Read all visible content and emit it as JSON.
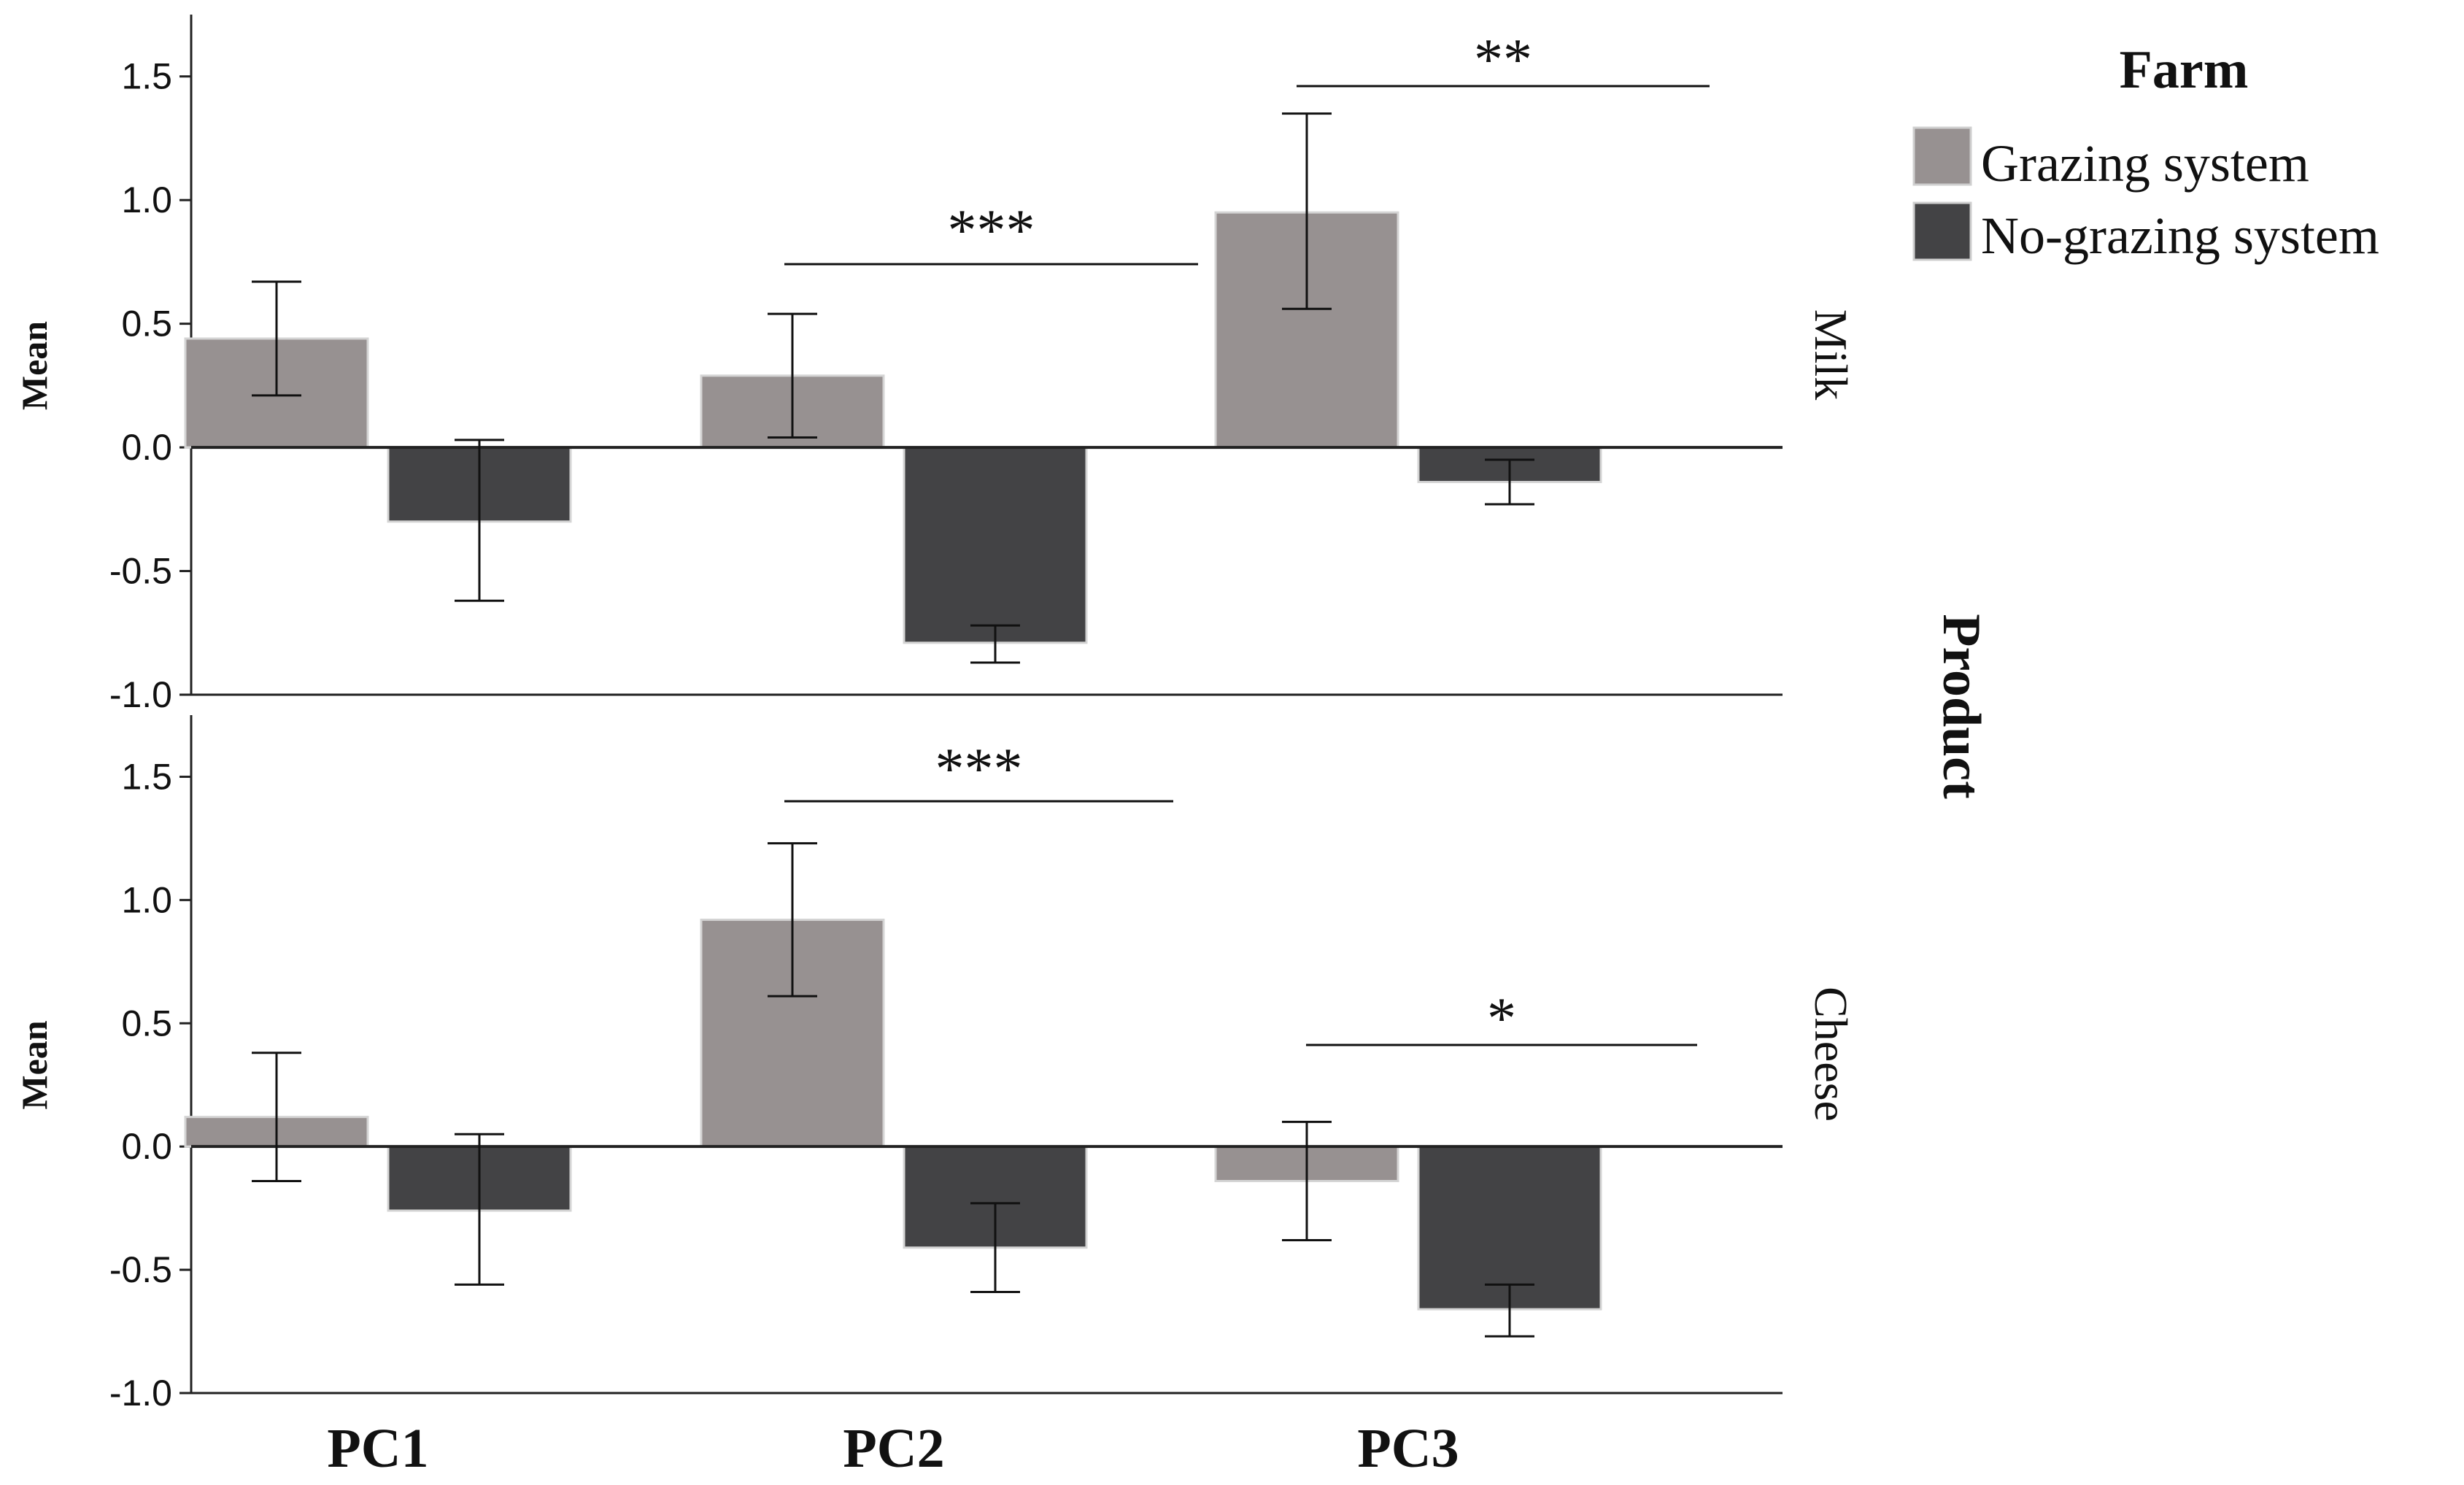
{
  "chart_data": {
    "type": "bar",
    "categories": [
      "PC1",
      "PC2",
      "PC3"
    ],
    "ylabel": "Mean",
    "ylim": [
      -1.0,
      1.75
    ],
    "yticks": [
      "1.5",
      "1.0",
      "0.5",
      "0.0",
      "-0.5",
      "-1.0"
    ],
    "facet_title": "Product",
    "legend": {
      "title": "Farm",
      "placement": "top-right",
      "entries": [
        {
          "name": "Grazing system",
          "color": "#979191"
        },
        {
          "name": "No-grazing system",
          "color": "#434345"
        }
      ]
    },
    "panels": [
      {
        "facet": "Milk",
        "series": [
          {
            "name": "Grazing system",
            "values": [
              0.44,
              0.29,
              0.95
            ],
            "err_low": [
              0.21,
              0.04,
              0.56
            ],
            "err_high": [
              0.67,
              0.54,
              1.35
            ]
          },
          {
            "name": "No-grazing system",
            "values": [
              -0.3,
              -0.79,
              -0.14
            ],
            "err_low": [
              -0.62,
              -0.87,
              -0.23
            ],
            "err_high": [
              0.03,
              -0.72,
              -0.05
            ]
          }
        ],
        "significance": [
          {
            "category": "PC2",
            "label": "***"
          },
          {
            "category": "PC3",
            "label": "**"
          }
        ]
      },
      {
        "facet": "Cheese",
        "series": [
          {
            "name": "Grazing system",
            "values": [
              0.12,
              0.92,
              -0.14
            ],
            "err_low": [
              -0.14,
              0.61,
              -0.38
            ],
            "err_high": [
              0.38,
              1.23,
              0.1
            ]
          },
          {
            "name": "No-grazing system",
            "values": [
              -0.26,
              -0.41,
              -0.66
            ],
            "err_low": [
              -0.56,
              -0.59,
              -0.77
            ],
            "err_high": [
              0.05,
              -0.23,
              -0.56
            ]
          }
        ],
        "significance": [
          {
            "category": "PC2",
            "label": "***"
          },
          {
            "category": "PC3",
            "label": "*"
          }
        ]
      }
    ]
  }
}
